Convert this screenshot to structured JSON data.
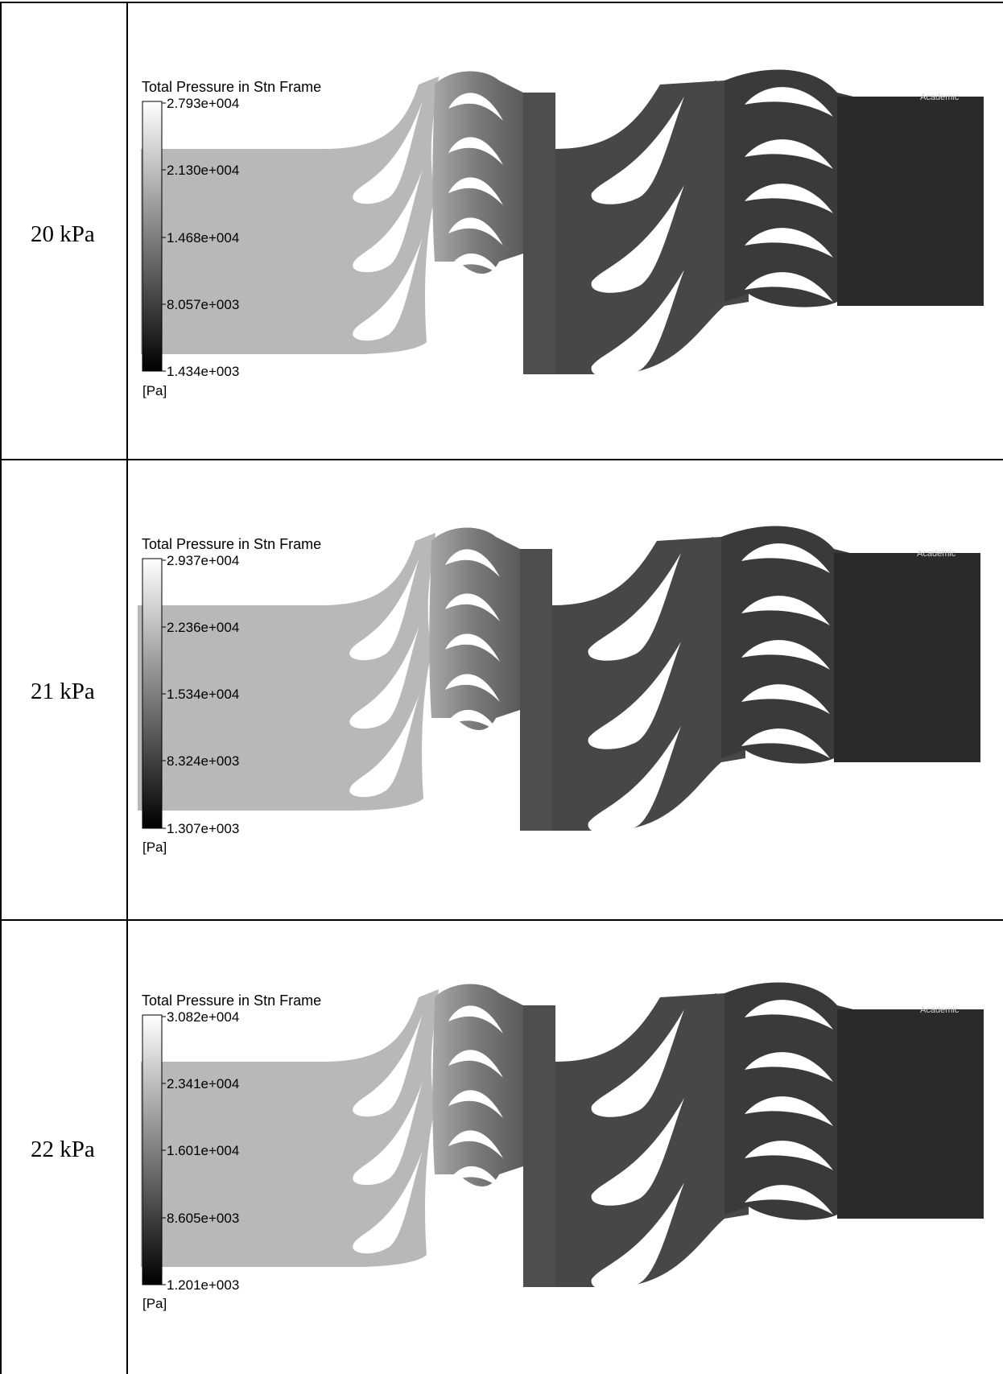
{
  "rows": [
    {
      "label": "20 kPa",
      "legend": {
        "title": "Total Pressure in Stn Frame",
        "ticks": [
          "2.793e+004",
          "2.130e+004",
          "1.468e+004",
          "8.057e+003",
          "1.434e+003"
        ],
        "unit": "[Pa]"
      },
      "watermark": "Academic"
    },
    {
      "label": "21 kPa",
      "legend": {
        "title": "Total Pressure in Stn Frame",
        "ticks": [
          "2.937e+004",
          "2.236e+004",
          "1.534e+004",
          "8.324e+003",
          "1.307e+003"
        ],
        "unit": "[Pa]"
      },
      "watermark": "Academic"
    },
    {
      "label": "22 kPa",
      "legend": {
        "title": "Total Pressure in Stn Frame",
        "ticks": [
          "3.082e+004",
          "2.341e+004",
          "1.601e+004",
          "8.605e+003",
          "1.201e+003"
        ],
        "unit": "[Pa]"
      },
      "watermark": "Academic"
    }
  ],
  "colors": {
    "inlet_region": "#b8b8b8",
    "stage1_rotor": "#4e4e4e",
    "stage2_stator": "#404040",
    "outlet_region": "#2a2a2a",
    "blade_cut": "#ffffff",
    "grid_line": "#000000"
  }
}
